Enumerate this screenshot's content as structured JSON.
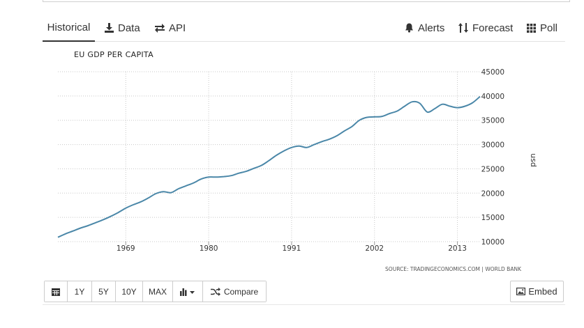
{
  "tabs": {
    "historical": "Historical",
    "data": "Data",
    "api": "API",
    "alerts": "Alerts",
    "forecast": "Forecast",
    "poll": "Poll"
  },
  "chart_data": {
    "type": "line",
    "title": "EU GDP PER CAPITA",
    "ylabel": "usd",
    "source": "SOURCE: TRADINGECONOMICS.COM | WORLD BANK",
    "xlim": [
      1960,
      2016
    ],
    "ylim": [
      10000,
      45000
    ],
    "x_ticks": [
      1969,
      1980,
      1991,
      2002,
      2013
    ],
    "y_ticks": [
      10000,
      15000,
      20000,
      25000,
      30000,
      35000,
      40000,
      45000
    ],
    "grid": true,
    "series": [
      {
        "color": "#4a87a8",
        "x": [
          1960,
          1961,
          1962,
          1963,
          1964,
          1965,
          1966,
          1967,
          1968,
          1969,
          1970,
          1971,
          1972,
          1973,
          1974,
          1975,
          1976,
          1977,
          1978,
          1979,
          1980,
          1981,
          1982,
          1983,
          1984,
          1985,
          1986,
          1987,
          1988,
          1989,
          1990,
          1991,
          1992,
          1993,
          1994,
          1995,
          1996,
          1997,
          1998,
          1999,
          2000,
          2001,
          2002,
          2003,
          2004,
          2005,
          2006,
          2007,
          2008,
          2009,
          2010,
          2011,
          2012,
          2013,
          2014,
          2015,
          2016
        ],
        "values": [
          10900,
          11600,
          12200,
          12800,
          13300,
          13900,
          14500,
          15200,
          16000,
          16900,
          17600,
          18200,
          19000,
          19900,
          20300,
          20100,
          20900,
          21500,
          22100,
          22900,
          23300,
          23300,
          23400,
          23600,
          24100,
          24500,
          25100,
          25700,
          26700,
          27800,
          28700,
          29400,
          29700,
          29400,
          30000,
          30600,
          31100,
          31800,
          32800,
          33700,
          35000,
          35600,
          35700,
          35800,
          36400,
          36900,
          37900,
          38800,
          38500,
          36700,
          37400,
          38300,
          37900,
          37600,
          37900,
          38600,
          39900
        ]
      }
    ]
  },
  "toolbar": {
    "calendar_icon": "calendar-icon",
    "btn_1y": "1Y",
    "btn_5y": "5Y",
    "btn_10y": "10Y",
    "btn_max": "MAX",
    "chart_type_icon": "bar-chart-icon",
    "compare": "Compare",
    "embed": "Embed"
  }
}
